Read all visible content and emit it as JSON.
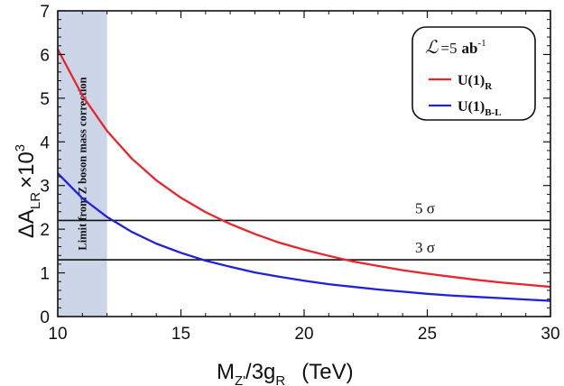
{
  "chart_data": {
    "type": "line",
    "title": "",
    "xlabel": {
      "base": "M",
      "sub": "Z'",
      "mid": "/3g",
      "sub2": "R",
      "unit": "(TeV)"
    },
    "ylabel": {
      "base": "ΔA",
      "sub": "LR",
      "mult": "×10",
      "sup": "3"
    },
    "xlim": [
      10,
      30
    ],
    "ylim": [
      0,
      7
    ],
    "xticks": [
      10,
      15,
      20,
      25,
      30
    ],
    "yticks": [
      0,
      1,
      2,
      3,
      4,
      5,
      6,
      7
    ],
    "grid": false,
    "legend": {
      "position": "top-right",
      "title": {
        "lumi_symbol": "ℒ",
        "equals_value": "=5",
        "unit": "ab",
        "unit_sup": "-1"
      }
    },
    "series": [
      {
        "name": "U(1)_R",
        "label_base": "U(1)",
        "label_sub": "R",
        "color": "#e8252b",
        "x": [
          10,
          11,
          12,
          13,
          14,
          15,
          16,
          17,
          18,
          19,
          20,
          21,
          22,
          23,
          24,
          25,
          26,
          27,
          28,
          29,
          30
        ],
        "values": [
          6.12,
          5.06,
          4.25,
          3.62,
          3.12,
          2.72,
          2.39,
          2.12,
          1.89,
          1.69,
          1.53,
          1.39,
          1.26,
          1.16,
          1.06,
          0.98,
          0.91,
          0.84,
          0.78,
          0.73,
          0.68
        ]
      },
      {
        "name": "U(1)_B-L",
        "label_base": "U(1)",
        "label_sub": "B-L",
        "color": "#1f22d8",
        "x": [
          10,
          11,
          12,
          13,
          14,
          15,
          16,
          17,
          18,
          19,
          20,
          21,
          22,
          23,
          24,
          25,
          26,
          27,
          28,
          29,
          30
        ],
        "values": [
          3.28,
          2.71,
          2.28,
          1.94,
          1.67,
          1.46,
          1.28,
          1.14,
          1.01,
          0.91,
          0.82,
          0.74,
          0.68,
          0.62,
          0.57,
          0.52,
          0.48,
          0.45,
          0.42,
          0.39,
          0.36
        ]
      }
    ],
    "hlines": [
      {
        "y": 2.2,
        "label": "5 σ"
      },
      {
        "y": 1.3,
        "label": "3 σ"
      }
    ],
    "band": {
      "x_from": 10,
      "x_to": 12,
      "color": "#ccd5e8",
      "label": "Limit from Z boson mass correction"
    }
  }
}
